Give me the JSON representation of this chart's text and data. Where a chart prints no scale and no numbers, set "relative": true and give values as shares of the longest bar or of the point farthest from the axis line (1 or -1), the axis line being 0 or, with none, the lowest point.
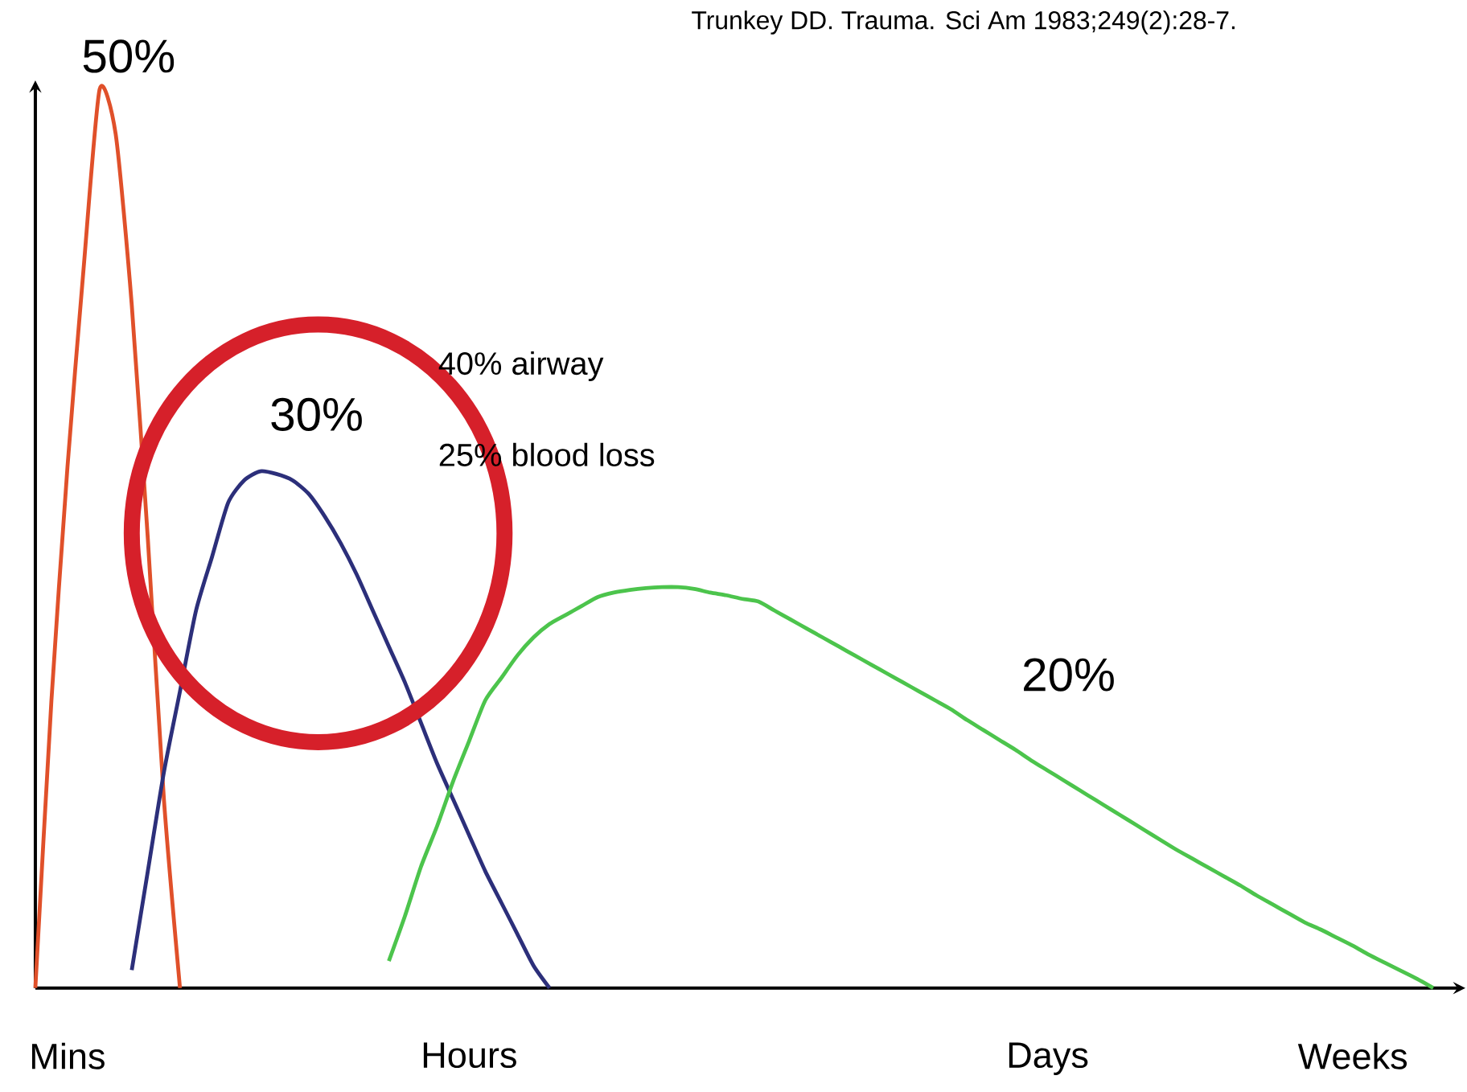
{
  "chart_data": {
    "type": "line",
    "relative": true,
    "annotations": [
      "50%",
      "30%",
      "20%",
      "40% airway",
      "25% blood loss",
      "Trunkey DD. Trauma. Sci Am 1983;249(2):28-7."
    ],
    "categories": [
      null,
      null,
      "Mins",
      null,
      null,
      null,
      null,
      null,
      null,
      null,
      null,
      null,
      null,
      null,
      null,
      null,
      null,
      null,
      null,
      null,
      null,
      null,
      null,
      null,
      null,
      null,
      null,
      "Hours",
      null,
      null,
      null,
      null,
      null,
      null,
      null,
      null,
      null,
      null,
      null,
      null,
      null,
      null,
      null,
      null,
      null,
      null,
      null,
      null,
      null,
      null,
      null,
      null,
      null,
      null,
      null,
      null,
      null,
      null,
      null,
      null,
      null,
      null,
      null,
      "Days",
      null,
      null,
      null,
      null,
      null,
      null,
      null,
      null,
      null,
      null,
      null,
      null,
      null,
      null,
      null,
      null,
      null,
      null,
      "Weeks",
      null,
      null,
      null,
      null,
      null,
      null,
      null
    ],
    "marker": "none",
    "line_style": "solid",
    "series": [
      {
        "color": "#e0502a",
        "values": [
          0,
          0.32,
          0.58,
          0.8,
          1,
          0.95,
          0.76,
          0.5,
          0.21,
          0,
          null,
          null,
          null,
          null,
          null,
          null,
          null,
          null,
          null,
          null,
          null,
          null,
          null,
          null,
          null,
          null,
          null,
          null,
          null,
          null,
          null,
          null,
          null,
          null,
          null,
          null,
          null,
          null,
          null,
          null,
          null,
          null,
          null,
          null,
          null,
          null,
          null,
          null,
          null,
          null,
          null,
          null,
          null,
          null,
          null,
          null,
          null,
          null,
          null,
          null,
          null,
          null,
          null,
          null,
          null,
          null,
          null,
          null,
          null,
          null,
          null,
          null,
          null,
          null,
          null,
          null,
          null,
          null,
          null,
          null,
          null,
          null,
          null,
          null,
          null,
          null,
          null,
          null,
          null,
          null
        ]
      },
      {
        "color": "#2c2f7a",
        "values": [
          null,
          null,
          null,
          null,
          null,
          null,
          0.02,
          0.13,
          0.24,
          0.33,
          0.42,
          0.48,
          0.54,
          0.565,
          0.575,
          0.572,
          0.565,
          0.55,
          0.525,
          0.495,
          0.46,
          0.42,
          0.38,
          0.34,
          0.295,
          0.25,
          0.21,
          0.17,
          0.13,
          0.095,
          0.06,
          0.025,
          0,
          null,
          null,
          null,
          null,
          null,
          null,
          null,
          null,
          null,
          null,
          null,
          null,
          null,
          null,
          null,
          null,
          null,
          null,
          null,
          null,
          null,
          null,
          null,
          null,
          null,
          null,
          null,
          null,
          null,
          null,
          null,
          null,
          null,
          null,
          null,
          null,
          null,
          null,
          null,
          null,
          null,
          null,
          null,
          null,
          null,
          null,
          null,
          null,
          null,
          null,
          null,
          null,
          null,
          null,
          null,
          null,
          null
        ]
      },
      {
        "color": "#4cc44c",
        "values": [
          null,
          null,
          null,
          null,
          null,
          null,
          null,
          null,
          null,
          null,
          null,
          null,
          null,
          null,
          null,
          null,
          null,
          null,
          null,
          null,
          null,
          null,
          0.03,
          0.08,
          0.135,
          0.18,
          0.23,
          0.275,
          0.32,
          0.345,
          0.37,
          0.39,
          0.405,
          0.415,
          0.425,
          0.435,
          0.44,
          0.443,
          0.445,
          0.446,
          0.446,
          0.444,
          0.44,
          0.437,
          0.433,
          0.43,
          0.42,
          0.41,
          0.4,
          0.39,
          0.38,
          0.37,
          0.36,
          0.35,
          0.34,
          0.33,
          0.32,
          0.31,
          0.298,
          0.287,
          0.276,
          0.265,
          0.253,
          0.242,
          0.231,
          0.22,
          0.209,
          0.198,
          0.187,
          0.176,
          0.165,
          0.154,
          0.144,
          0.134,
          0.124,
          0.114,
          0.103,
          0.093,
          0.083,
          0.073,
          0.065,
          0.056,
          0.047,
          0.037,
          0.028,
          0.019,
          0.01,
          0,
          null,
          null
        ]
      }
    ]
  }
}
